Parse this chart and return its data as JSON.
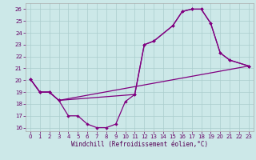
{
  "xlabel": "Windchill (Refroidissement éolien,°C)",
  "bg_color": "#cce8e8",
  "grid_color": "#aacccc",
  "line_color": "#800080",
  "xlim_min": -0.5,
  "xlim_max": 23.5,
  "ylim_min": 15.7,
  "ylim_max": 26.5,
  "yticks": [
    16,
    17,
    18,
    19,
    20,
    21,
    22,
    23,
    24,
    25,
    26
  ],
  "xticks": [
    0,
    1,
    2,
    3,
    4,
    5,
    6,
    7,
    8,
    9,
    10,
    11,
    12,
    13,
    14,
    15,
    16,
    17,
    18,
    19,
    20,
    21,
    22,
    23
  ],
  "line_dip_x": [
    0,
    1,
    2,
    3,
    4,
    5,
    6,
    7,
    8,
    9,
    10,
    11,
    12,
    13,
    15,
    16,
    17,
    18,
    19,
    20,
    21,
    23
  ],
  "line_dip_y": [
    20.1,
    19.0,
    19.0,
    18.3,
    17.0,
    17.0,
    16.3,
    16.0,
    16.0,
    16.3,
    18.2,
    18.8,
    23.0,
    23.3,
    24.6,
    25.8,
    26.0,
    26.0,
    24.8,
    22.3,
    21.7,
    21.2
  ],
  "line_upper_x": [
    0,
    1,
    2,
    3,
    11,
    12,
    13,
    15,
    16,
    17,
    18,
    19,
    20,
    21,
    23
  ],
  "line_upper_y": [
    20.1,
    19.0,
    19.0,
    18.3,
    18.8,
    23.0,
    23.3,
    24.6,
    25.8,
    26.0,
    26.0,
    24.8,
    22.3,
    21.7,
    21.2
  ],
  "line_diag_x": [
    0,
    1,
    2,
    3,
    23
  ],
  "line_diag_y": [
    20.1,
    19.0,
    19.0,
    18.3,
    21.2
  ]
}
